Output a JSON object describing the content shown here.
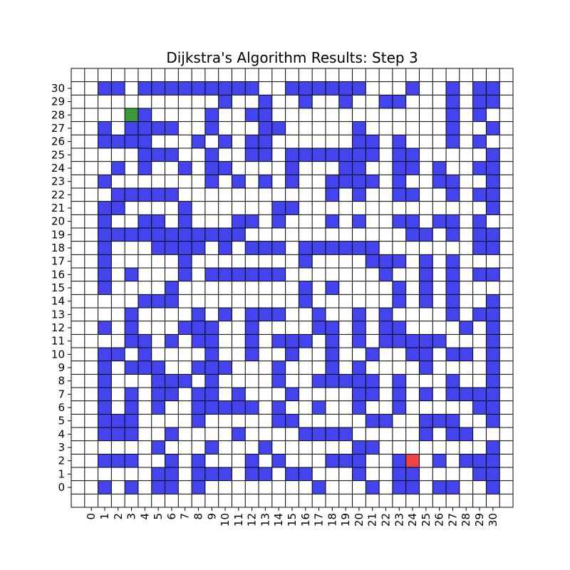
{
  "chart_data": {
    "type": "heatmap",
    "title": "Dijkstra's Algorithm Results: Step 3",
    "xlabel": "",
    "ylabel": "",
    "x_ticks": [
      0,
      1,
      2,
      3,
      4,
      5,
      6,
      7,
      8,
      9,
      10,
      11,
      12,
      13,
      14,
      15,
      16,
      17,
      18,
      19,
      20,
      21,
      22,
      23,
      24,
      25,
      26,
      27,
      28,
      29,
      30
    ],
    "y_ticks": [
      0,
      1,
      2,
      3,
      4,
      5,
      6,
      7,
      8,
      9,
      10,
      11,
      12,
      13,
      14,
      15,
      16,
      17,
      18,
      19,
      20,
      21,
      22,
      23,
      24,
      25,
      26,
      27,
      28,
      29,
      30
    ],
    "xlim": [
      -1.5,
      31.5
    ],
    "ylim": [
      -1.5,
      31.5
    ],
    "grid": true,
    "legend": "none",
    "colors": {
      "wall": "#4444ee",
      "start": "#3a9a3a",
      "goal": "#ee4444",
      "empty": "#ffffff",
      "gridline": "#000000"
    },
    "start": [
      3,
      28
    ],
    "goal": [
      24,
      2
    ],
    "wall_rows": {
      "30": [
        1,
        2,
        4,
        5,
        6,
        7,
        8,
        9,
        10,
        11,
        12,
        15,
        16,
        17,
        18,
        19,
        20,
        24,
        27,
        29,
        30
      ],
      "29": [
        10,
        13,
        16,
        19,
        22,
        23,
        27,
        29,
        30
      ],
      "28": [
        3,
        4,
        9,
        12,
        13,
        27,
        29
      ],
      "27": [
        1,
        3,
        4,
        5,
        6,
        9,
        13,
        14,
        20,
        27,
        30
      ],
      "26": [
        1,
        2,
        3,
        4,
        8,
        10,
        12,
        13,
        20,
        21,
        23,
        27,
        29
      ],
      "25": [
        4,
        5,
        6,
        9,
        12,
        13,
        15,
        16,
        17,
        18,
        19,
        20,
        21,
        23,
        24,
        30
      ],
      "24": [
        2,
        4,
        7,
        9,
        10,
        15,
        19,
        20,
        23,
        24,
        26,
        29,
        30
      ],
      "23": [
        1,
        9,
        11,
        13,
        15,
        18,
        19,
        20,
        21,
        23,
        26,
        27,
        30
      ],
      "22": [
        2,
        3,
        4,
        5,
        6,
        18,
        20,
        23,
        24,
        27,
        29,
        30
      ],
      "21": [
        1,
        2,
        7,
        14,
        15,
        30
      ],
      "20": [
        1,
        4,
        5,
        7,
        11,
        12,
        14,
        18,
        20,
        23,
        24,
        26,
        27,
        29
      ],
      "19": [
        1,
        2,
        3,
        4,
        5,
        6,
        7,
        8,
        9,
        10,
        11,
        24,
        25,
        27,
        29,
        30
      ],
      "18": [
        1,
        5,
        6,
        7,
        8,
        10,
        12,
        13,
        14,
        16,
        17,
        18,
        19,
        20,
        21,
        29,
        30
      ],
      "17": [
        1,
        7,
        16,
        21,
        22,
        23,
        25,
        27
      ],
      "16": [
        1,
        3,
        7,
        9,
        10,
        11,
        12,
        13,
        14,
        22,
        25,
        27,
        29,
        30
      ],
      "15": [
        1,
        6,
        16,
        18,
        23,
        25,
        27
      ],
      "14": [
        4,
        5,
        6,
        16,
        23,
        25,
        27,
        30
      ],
      "13": [
        3,
        8,
        10,
        12,
        13,
        14,
        17,
        20,
        22,
        27,
        29,
        30
      ],
      "12": [
        1,
        3,
        7,
        8,
        9,
        12,
        17,
        18,
        20,
        22,
        23,
        28,
        30
      ],
      "11": [
        3,
        4,
        6,
        8,
        9,
        12,
        14,
        15,
        16,
        18,
        20,
        22,
        23,
        24,
        25,
        26,
        30
      ],
      "10": [
        1,
        2,
        4,
        9,
        12,
        15,
        18,
        21,
        24,
        25,
        27,
        28,
        30
      ],
      "9": [
        1,
        3,
        4,
        5,
        8,
        9,
        10,
        14,
        18,
        20,
        25,
        30
      ],
      "8": [
        1,
        5,
        6,
        7,
        9,
        14,
        17,
        18,
        19,
        20,
        21,
        23,
        27,
        30
      ],
      "7": [
        1,
        3,
        5,
        6,
        8,
        9,
        11,
        15,
        20,
        21,
        23,
        25,
        27,
        28,
        29,
        30
      ],
      "6": [
        1,
        3,
        5,
        8,
        9,
        10,
        11,
        12,
        14,
        17,
        20,
        23,
        29,
        30
      ],
      "5": [
        1,
        2,
        3,
        8,
        14,
        15,
        21,
        22,
        25,
        26,
        27,
        30
      ],
      "4": [
        1,
        2,
        3,
        6,
        11,
        16,
        17,
        18,
        19,
        25,
        27,
        28
      ],
      "3": [
        5,
        9,
        13,
        20,
        21,
        30
      ],
      "2": [
        1,
        2,
        3,
        6,
        8,
        12,
        14,
        18,
        19,
        20,
        23,
        26,
        28,
        29,
        30
      ],
      "1": [
        5,
        6,
        8,
        9,
        10,
        12,
        13,
        15,
        16,
        20,
        23,
        24,
        29,
        30
      ],
      "0": [
        1,
        3,
        5,
        6,
        8,
        17,
        21,
        23,
        24,
        26,
        27,
        30
      ]
    }
  }
}
